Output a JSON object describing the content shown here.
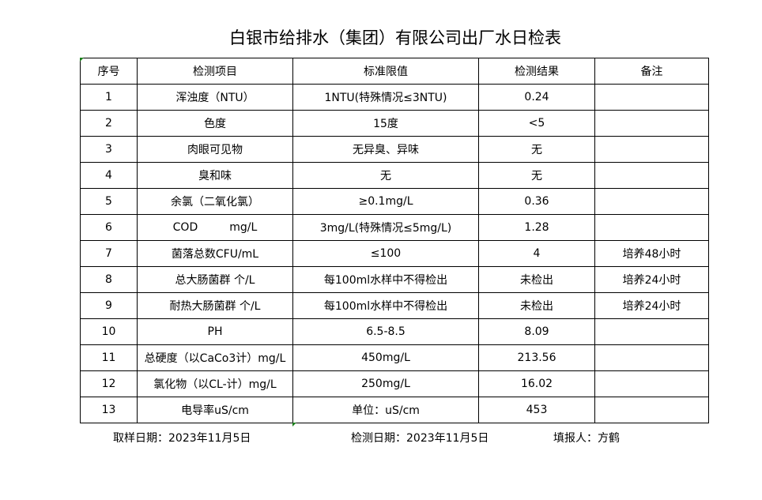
{
  "title": "白银市给排水（集团）有限公司出厂水日检表",
  "headers": [
    "序号",
    "检测项目",
    "标准限值",
    "检测结果",
    "备注"
  ],
  "rows": [
    [
      "1",
      "浑浊度（NTU）",
      "1NTU(特殊情况≤3NTU)",
      "0.24",
      ""
    ],
    [
      "2",
      "色度",
      "15度",
      "<5",
      ""
    ],
    [
      "3",
      "肉眼可见物",
      "无异臭、异味",
      "无",
      ""
    ],
    [
      "4",
      "臭和味",
      "无",
      "无",
      ""
    ],
    [
      "5",
      "余氯（二氧化氯）",
      "≥0.1mg/L",
      "0.36",
      ""
    ],
    [
      "6",
      "COD         mg/L",
      "3mg/L(特殊情况≤5mg/L)",
      "1.28",
      ""
    ],
    [
      "7",
      "菌落总数CFU/mL",
      "≤100",
      "4",
      "培养48小时"
    ],
    [
      "8",
      "总大肠菌群 个/L",
      "每100ml水样中不得检出",
      "未检出",
      "培养24小时"
    ],
    [
      "9",
      "耐热大肠菌群 个/L",
      "每100ml水样中不得检出",
      "未检出",
      "培养24小时"
    ],
    [
      "10",
      "PH",
      "6.5-8.5",
      "8.09",
      ""
    ],
    [
      "11",
      "总硬度（以CaCo3计）mg/L",
      "450mg/L",
      "213.56",
      ""
    ],
    [
      "12",
      "氯化物（以CL-计）mg/L",
      "250mg/L",
      "16.02",
      ""
    ],
    [
      "13",
      "电导率uS/cm",
      "单位：uS/cm",
      "453",
      ""
    ]
  ],
  "footer": {
    "sampling_date": "取样日期：2023年11月5日",
    "test_date": "检测日期：2023年11月5日",
    "reporter": "填报人：方鹤"
  }
}
